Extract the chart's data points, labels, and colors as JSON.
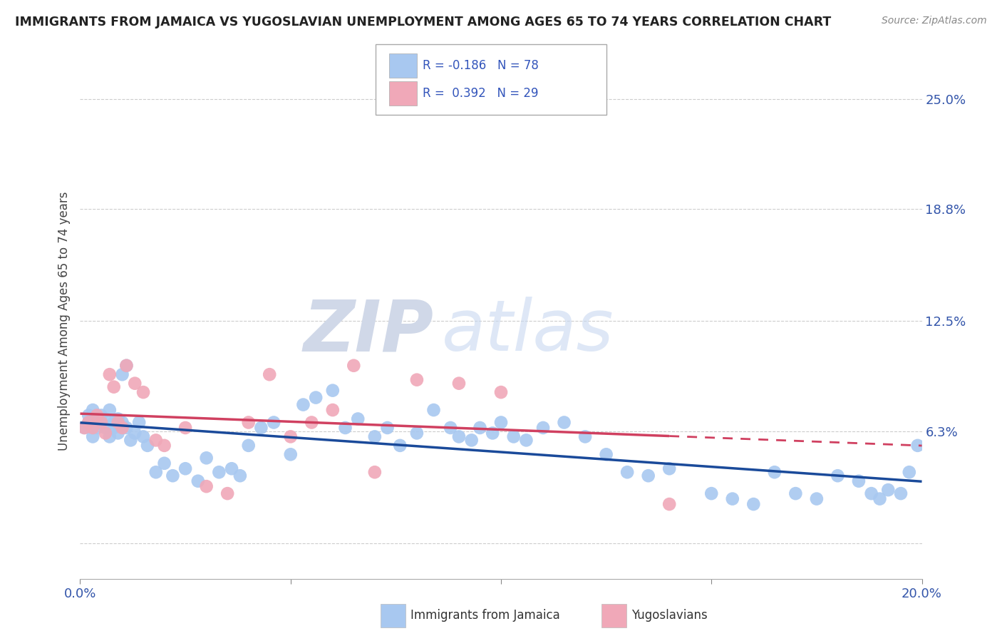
{
  "title": "IMMIGRANTS FROM JAMAICA VS YUGOSLAVIAN UNEMPLOYMENT AMONG AGES 65 TO 74 YEARS CORRELATION CHART",
  "source": "Source: ZipAtlas.com",
  "ylabel": "Unemployment Among Ages 65 to 74 years",
  "xlim": [
    0.0,
    0.2
  ],
  "ylim": [
    -0.02,
    0.27
  ],
  "xticks": [
    0.0,
    0.05,
    0.1,
    0.15,
    0.2
  ],
  "xticklabels": [
    "0.0%",
    "",
    "",
    "",
    "20.0%"
  ],
  "yticks": [
    0.0,
    0.063,
    0.125,
    0.188,
    0.25
  ],
  "yticklabels": [
    "",
    "6.3%",
    "12.5%",
    "18.8%",
    "25.0%"
  ],
  "legend1_label": "Immigrants from Jamaica",
  "legend2_label": "Yugoslavians",
  "r1": -0.186,
  "n1": 78,
  "r2": 0.392,
  "n2": 29,
  "color_blue": "#a8c8f0",
  "color_pink": "#f0a8b8",
  "line_color_blue": "#1a4a9a",
  "line_color_pink": "#d04060",
  "watermark_zip": "ZIP",
  "watermark_atlas": "atlas",
  "blue_x": [
    0.001,
    0.002,
    0.002,
    0.003,
    0.003,
    0.004,
    0.004,
    0.005,
    0.005,
    0.006,
    0.006,
    0.007,
    0.007,
    0.008,
    0.008,
    0.009,
    0.009,
    0.01,
    0.01,
    0.011,
    0.011,
    0.012,
    0.013,
    0.014,
    0.015,
    0.016,
    0.018,
    0.02,
    0.022,
    0.025,
    0.028,
    0.03,
    0.033,
    0.036,
    0.038,
    0.04,
    0.043,
    0.046,
    0.05,
    0.053,
    0.056,
    0.06,
    0.063,
    0.066,
    0.07,
    0.073,
    0.076,
    0.08,
    0.084,
    0.088,
    0.09,
    0.093,
    0.095,
    0.098,
    0.1,
    0.103,
    0.106,
    0.11,
    0.115,
    0.12,
    0.125,
    0.13,
    0.135,
    0.14,
    0.15,
    0.155,
    0.16,
    0.165,
    0.17,
    0.175,
    0.18,
    0.185,
    0.188,
    0.19,
    0.192,
    0.195,
    0.197,
    0.199
  ],
  "blue_y": [
    0.065,
    0.068,
    0.072,
    0.06,
    0.075,
    0.065,
    0.07,
    0.068,
    0.072,
    0.065,
    0.07,
    0.06,
    0.075,
    0.065,
    0.068,
    0.062,
    0.07,
    0.095,
    0.068,
    0.1,
    0.065,
    0.058,
    0.062,
    0.068,
    0.06,
    0.055,
    0.04,
    0.045,
    0.038,
    0.042,
    0.035,
    0.048,
    0.04,
    0.042,
    0.038,
    0.055,
    0.065,
    0.068,
    0.05,
    0.078,
    0.082,
    0.086,
    0.065,
    0.07,
    0.06,
    0.065,
    0.055,
    0.062,
    0.075,
    0.065,
    0.06,
    0.058,
    0.065,
    0.062,
    0.068,
    0.06,
    0.058,
    0.065,
    0.068,
    0.06,
    0.05,
    0.04,
    0.038,
    0.042,
    0.028,
    0.025,
    0.022,
    0.04,
    0.028,
    0.025,
    0.038,
    0.035,
    0.028,
    0.025,
    0.03,
    0.028,
    0.04,
    0.055
  ],
  "pink_x": [
    0.001,
    0.002,
    0.003,
    0.004,
    0.005,
    0.006,
    0.007,
    0.008,
    0.009,
    0.01,
    0.011,
    0.013,
    0.015,
    0.018,
    0.02,
    0.025,
    0.03,
    0.035,
    0.04,
    0.045,
    0.05,
    0.055,
    0.06,
    0.065,
    0.07,
    0.08,
    0.09,
    0.1,
    0.14
  ],
  "pink_y": [
    0.065,
    0.068,
    0.065,
    0.072,
    0.068,
    0.062,
    0.095,
    0.088,
    0.068,
    0.065,
    0.1,
    0.09,
    0.085,
    0.058,
    0.055,
    0.065,
    0.032,
    0.028,
    0.068,
    0.095,
    0.06,
    0.068,
    0.075,
    0.1,
    0.04,
    0.092,
    0.09,
    0.085,
    0.022
  ]
}
